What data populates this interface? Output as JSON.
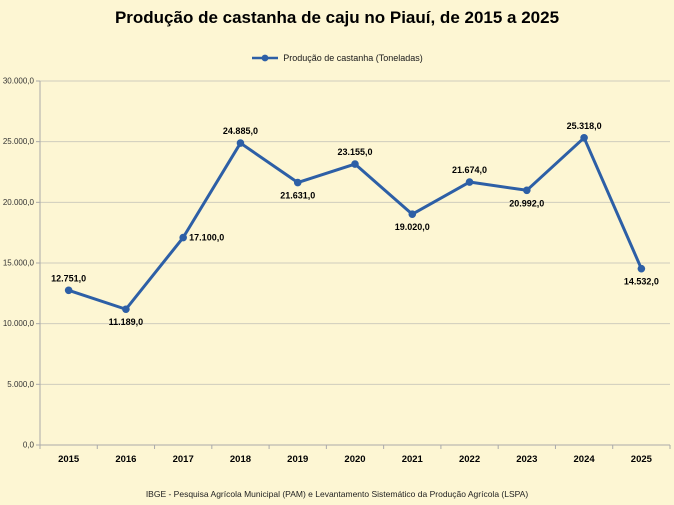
{
  "page": {
    "background_color": "#fdf6d3"
  },
  "header": {
    "title": "Produção de castanha de caju no Piauí, de 2015 a 2025"
  },
  "legend": {
    "label": "Produção de castanha (Toneladas)",
    "marker_color": "#2d5fa6"
  },
  "footer": {
    "source": "IBGE - Pesquisa Agrícola Municipal (PAM) e Levantamento Sistemático da Produção Agrícola (LSPA)"
  },
  "chart_data": {
    "type": "line",
    "title": "Produção de castanha de caju no Piauí, de 2015 a 2025",
    "xlabel": "",
    "ylabel": "",
    "categories": [
      "2015",
      "2016",
      "2017",
      "2018",
      "2019",
      "2020",
      "2021",
      "2022",
      "2023",
      "2024",
      "2025"
    ],
    "series": [
      {
        "name": "Produção de castanha (Toneladas)",
        "values": [
          12751,
          11189,
          17100,
          24885,
          21631,
          23155,
          19020,
          21674,
          20992,
          25318,
          14532
        ],
        "point_labels": [
          "12.751,0",
          "11.189,0",
          "17.100,0",
          "24.885,0",
          "21.631,0",
          "23.155,0",
          "19.020,0",
          "21.674,0",
          "20.992,0",
          "25.318,0",
          "14.532,0"
        ],
        "label_positions": [
          "above",
          "below",
          "right",
          "above",
          "below",
          "above",
          "below",
          "above",
          "below",
          "above",
          "below"
        ],
        "color": "#2d5fa6"
      }
    ],
    "y_axis": {
      "min": 0,
      "max": 30000,
      "step": 5000,
      "tick_labels": [
        "0,0",
        "5.000,0",
        "10.000,0",
        "15.000,0",
        "20.000,0",
        "25.000,0",
        "30.000,0"
      ]
    },
    "legend_position": "top-center",
    "grid": true,
    "grid_color": "#cfccbe",
    "axis_color": "#aaaaaa",
    "tick_label_color": "#333333",
    "data_label_color": "#000000"
  }
}
